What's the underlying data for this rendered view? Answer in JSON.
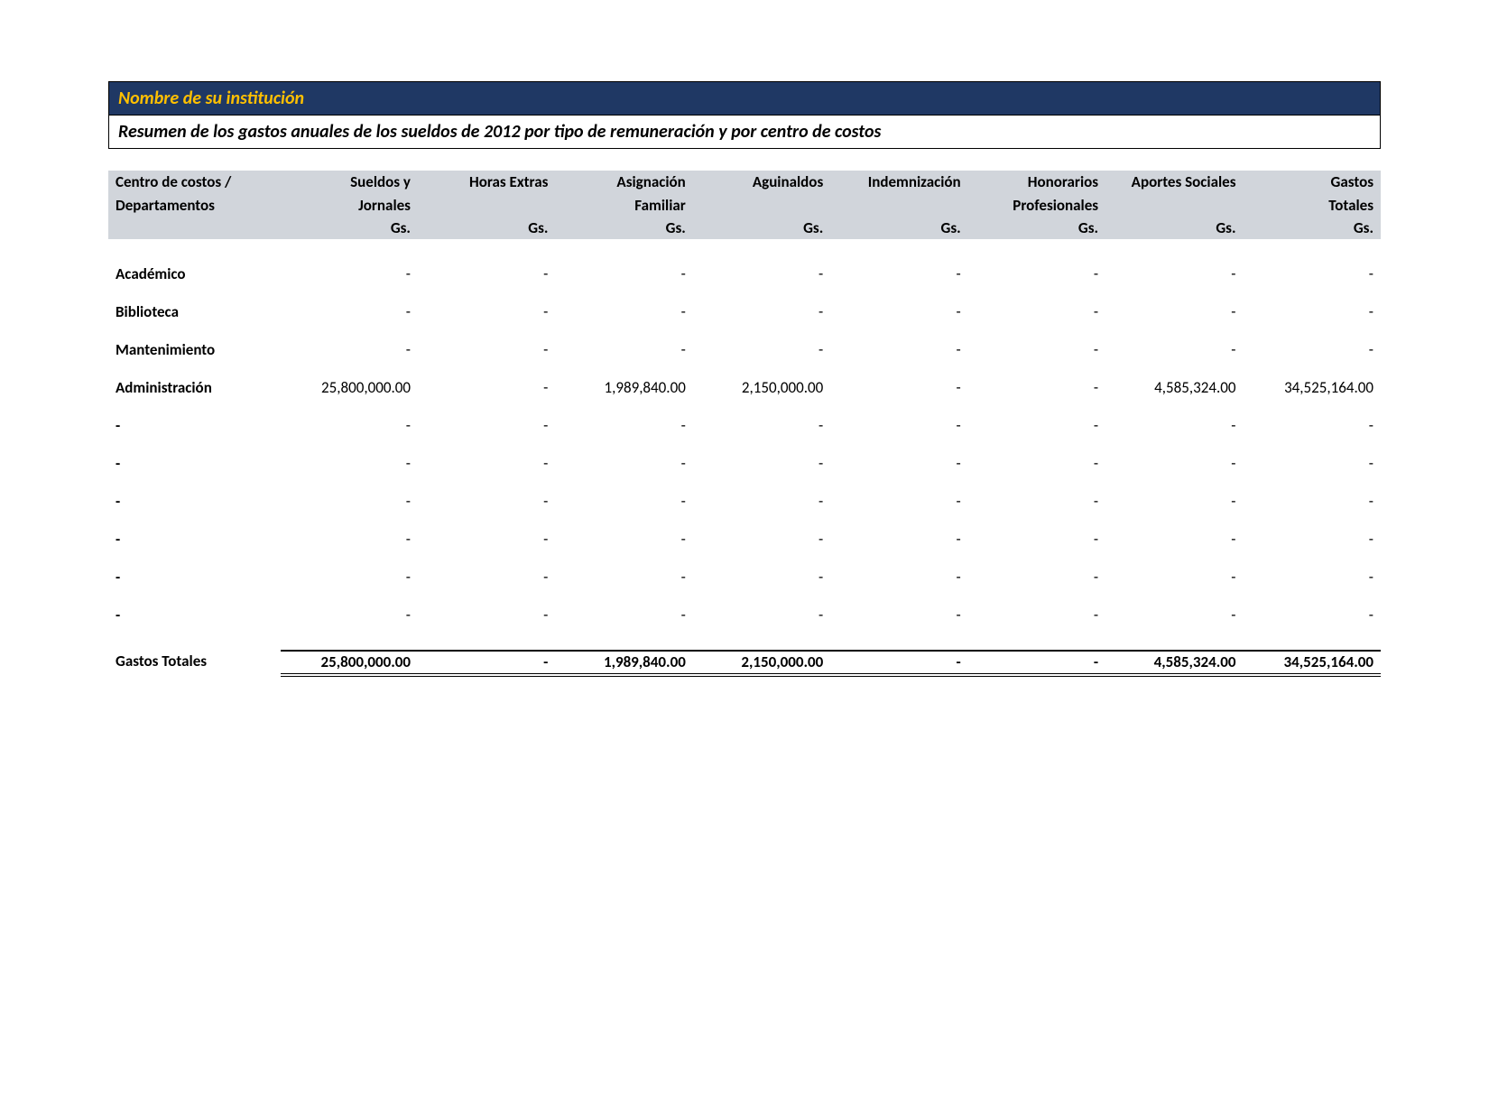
{
  "header": {
    "institution_label": "Nombre de su institución",
    "subtitle": "Resumen de los gastos anuales de los sueldos de 2012 por tipo de remuneración y por centro de costos",
    "title_bg": "#1f3864",
    "title_color": "#ffc000",
    "subtitle_bg": "#ffffff",
    "subtitle_color": "#000000",
    "border_color": "#000000"
  },
  "table": {
    "type": "table",
    "header_bg": "#d1d5db",
    "text_color": "#000000",
    "fontsize": 17,
    "columns": [
      {
        "line1": "Centro de costos /",
        "line2": "Departamentos",
        "line3": "",
        "align": "left"
      },
      {
        "line1": "Sueldos y",
        "line2": "Jornales",
        "line3": "Gs.",
        "align": "right"
      },
      {
        "line1": "Horas Extras",
        "line2": "",
        "line3": "Gs.",
        "align": "right"
      },
      {
        "line1": "Asignación",
        "line2": "Familiar",
        "line3": "Gs.",
        "align": "right"
      },
      {
        "line1": "Aguinaldos",
        "line2": "",
        "line3": "Gs.",
        "align": "right"
      },
      {
        "line1": "Indemnización",
        "line2": "",
        "line3": "Gs.",
        "align": "right"
      },
      {
        "line1": "Honorarios",
        "line2": "Profesionales",
        "line3": "Gs.",
        "align": "right"
      },
      {
        "line1": "Aportes Sociales",
        "line2": "",
        "line3": "Gs.",
        "align": "right"
      },
      {
        "line1": "Gastos",
        "line2": "Totales",
        "line3": "Gs.",
        "align": "right"
      }
    ],
    "rows": [
      {
        "label": "Académico",
        "cells": [
          "-",
          "-",
          "-",
          "-",
          "-",
          "-",
          "-",
          "-"
        ]
      },
      {
        "label": "Biblioteca",
        "cells": [
          "-",
          "-",
          "-",
          "-",
          "-",
          "-",
          "-",
          "-"
        ]
      },
      {
        "label": "Mantenimiento",
        "cells": [
          "-",
          "-",
          "-",
          "-",
          "-",
          "-",
          "-",
          "-"
        ]
      },
      {
        "label": "Administración",
        "cells": [
          "25,800,000.00",
          "-",
          "1,989,840.00",
          "2,150,000.00",
          "-",
          "-",
          "4,585,324.00",
          "34,525,164.00"
        ]
      },
      {
        "label": "-",
        "cells": [
          "-",
          "-",
          "-",
          "-",
          "-",
          "-",
          "-",
          "-"
        ]
      },
      {
        "label": "-",
        "cells": [
          "-",
          "-",
          "-",
          "-",
          "-",
          "-",
          "-",
          "-"
        ]
      },
      {
        "label": "-",
        "cells": [
          "-",
          "-",
          "-",
          "-",
          "-",
          "-",
          "-",
          "-"
        ]
      },
      {
        "label": "-",
        "cells": [
          "-",
          "-",
          "-",
          "-",
          "-",
          "-",
          "-",
          "-"
        ]
      },
      {
        "label": "-",
        "cells": [
          "-",
          "-",
          "-",
          "-",
          "-",
          "-",
          "-",
          "-"
        ]
      },
      {
        "label": "-",
        "cells": [
          "-",
          "-",
          "-",
          "-",
          "-",
          "-",
          "-",
          "-"
        ]
      }
    ],
    "totals": {
      "label": "Gastos Totales",
      "cells": [
        "25,800,000.00",
        "-",
        "1,989,840.00",
        "2,150,000.00",
        "-",
        "-",
        "4,585,324.00",
        "34,525,164.00"
      ]
    }
  }
}
